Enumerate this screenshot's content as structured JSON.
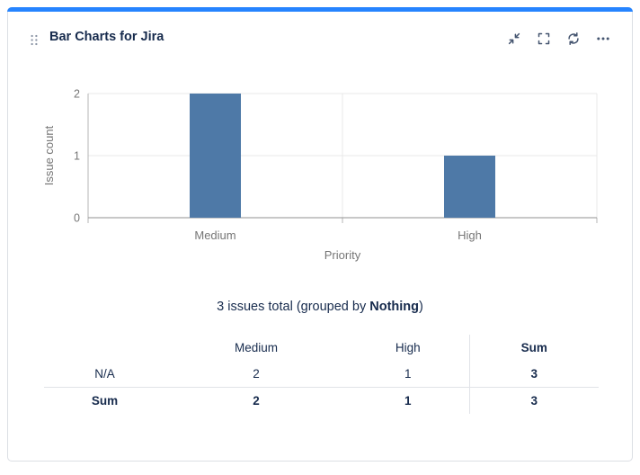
{
  "card": {
    "title": "Bar Charts for Jira",
    "accent_color": "#2684FF"
  },
  "toolbar": {
    "icons": [
      {
        "name": "collapse-icon"
      },
      {
        "name": "fullscreen-icon"
      },
      {
        "name": "refresh-icon"
      },
      {
        "name": "more-icon"
      }
    ]
  },
  "chart_data": {
    "type": "bar",
    "title": "",
    "categories": [
      "Medium",
      "High"
    ],
    "values": [
      2,
      1
    ],
    "xlabel": "Priority",
    "ylabel": "Issue count",
    "ylim": [
      0,
      2
    ],
    "yticks": [
      0,
      1,
      2
    ],
    "bar_color": "#4e79a7",
    "grid": true,
    "legend": "none"
  },
  "summary": {
    "prefix": "3 issues total (grouped by ",
    "group_by": "Nothing",
    "suffix": ")"
  },
  "table": {
    "headers": [
      "",
      "Medium",
      "High",
      "Sum"
    ],
    "rows": [
      [
        "N/A",
        "2",
        "1",
        "3"
      ],
      [
        "Sum",
        "2",
        "1",
        "3"
      ]
    ]
  }
}
